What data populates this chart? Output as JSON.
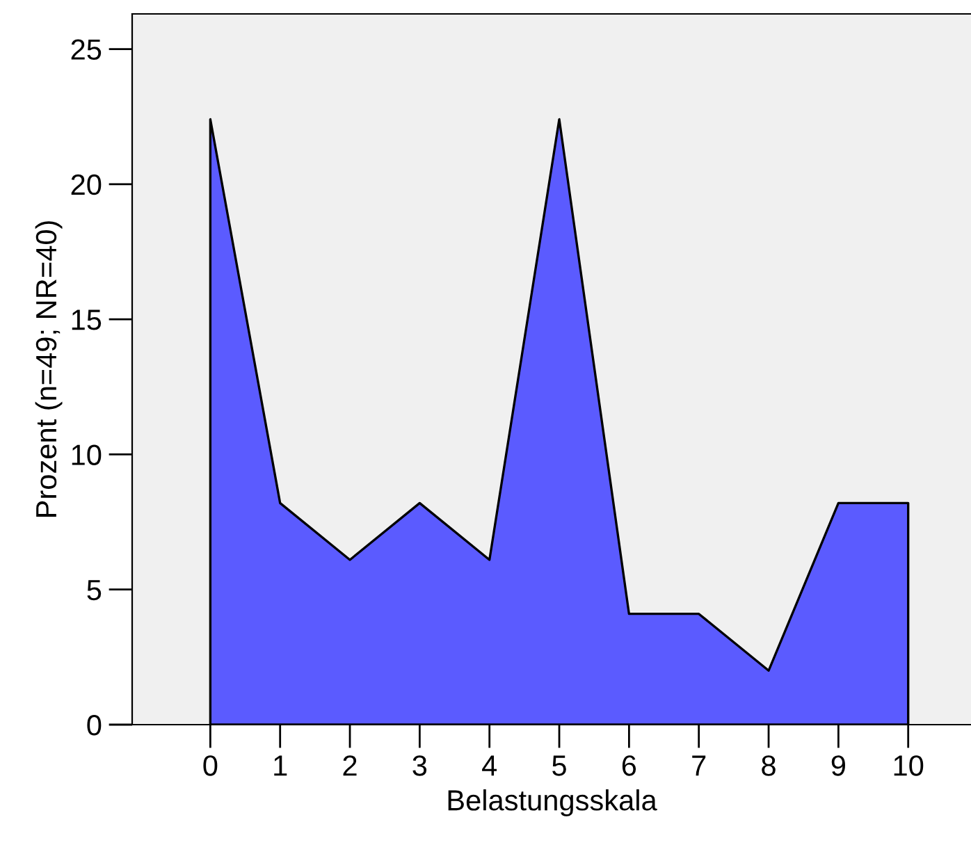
{
  "chart_data": {
    "type": "area",
    "xlabel": "Belastungsskala",
    "ylabel": "Prozent (n=49; NR=40)",
    "x": [
      0,
      1,
      2,
      3,
      4,
      5,
      6,
      7,
      8,
      9,
      10
    ],
    "values": [
      22.4,
      8.2,
      6.1,
      8.2,
      6.1,
      22.4,
      4.1,
      4.1,
      2.0,
      8.2,
      8.2
    ],
    "color": "#5b5bff",
    "xlim": [
      -1.12,
      10.9
    ],
    "ylim": [
      0,
      26.3
    ],
    "xticks": [
      0,
      1,
      2,
      3,
      4,
      5,
      6,
      7,
      8,
      9,
      10
    ],
    "yticks": [
      0,
      5,
      10,
      15,
      20,
      25
    ],
    "grid": false,
    "legend": false
  }
}
